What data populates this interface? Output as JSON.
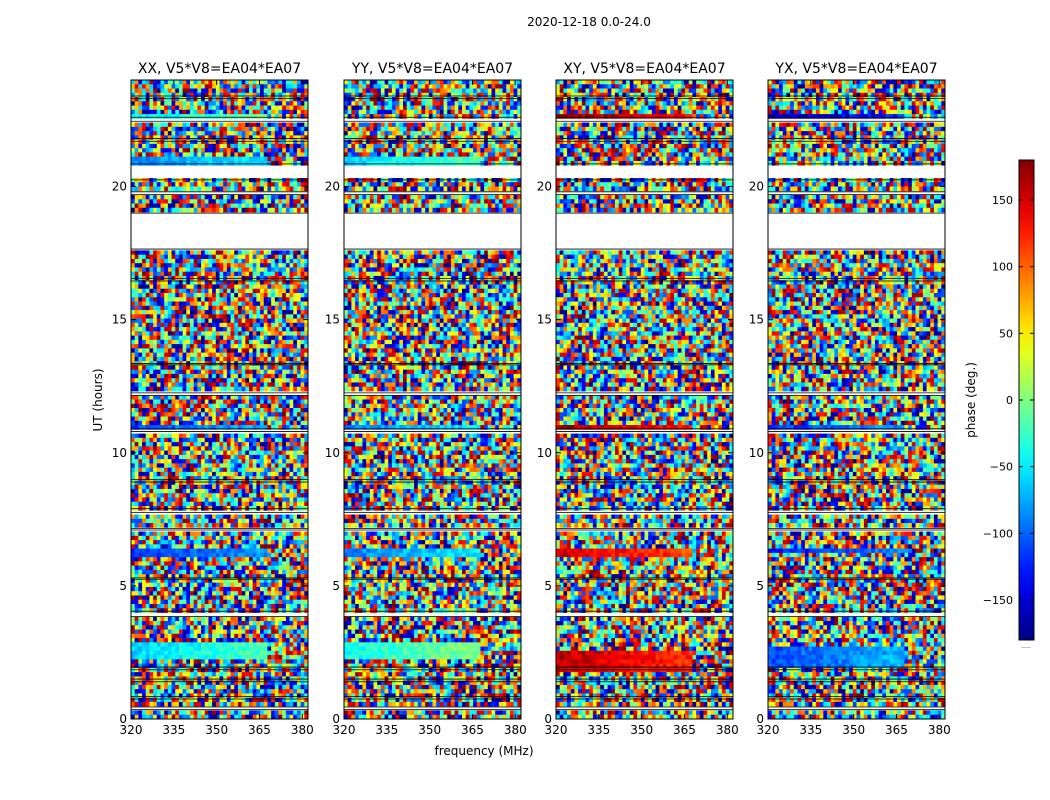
{
  "chart_data": {
    "type": "heatmap",
    "title": "2020-12-18 0.0-24.0",
    "xlabel": "frequency (MHz)",
    "ylabel": "UT (hours)",
    "xlim": [
      320,
      382
    ],
    "ylim": [
      0,
      24
    ],
    "x_ticks": [
      320,
      335,
      350,
      365,
      380
    ],
    "y_ticks": [
      0,
      5,
      10,
      15,
      20
    ],
    "panels": [
      {
        "title": "XX, V5*V8=EA04*EA07"
      },
      {
        "title": "YY, V5*V8=EA04*EA07"
      },
      {
        "title": "XY, V5*V8=EA04*EA07"
      },
      {
        "title": "YX, V5*V8=EA04*EA07"
      }
    ],
    "colorbar": {
      "label": "phase (deg.)",
      "range": [
        -180,
        180
      ],
      "ticks": [
        -150,
        -100,
        -50,
        0,
        50,
        100,
        150
      ],
      "colormap": "jet",
      "note": "....."
    },
    "gaps_hours": [
      [
        0.35,
        0.45
      ],
      [
        0.75,
        0.85
      ],
      [
        1.4,
        1.5
      ],
      [
        1.85,
        1.95
      ],
      [
        3.85,
        4.05
      ],
      [
        5.25,
        5.3
      ],
      [
        7.1,
        7.15
      ],
      [
        7.75,
        7.9
      ],
      [
        8.9,
        9.0
      ],
      [
        10.8,
        10.9
      ],
      [
        12.15,
        12.25
      ],
      [
        13.3,
        13.35
      ],
      [
        16.45,
        16.55
      ],
      [
        17.65,
        19.0
      ],
      [
        19.7,
        19.8
      ],
      [
        20.25,
        20.85
      ],
      [
        21.7,
        21.8
      ],
      [
        22.45,
        22.6
      ],
      [
        23.3,
        23.4
      ]
    ],
    "smooth_bands": [
      [
        [
          2.3,
          2.95,
          -60
        ],
        [
          6.1,
          6.45,
          -120
        ],
        [
          10.85,
          11.05,
          -110
        ],
        [
          20.65,
          21.05,
          -90
        ],
        [
          22.6,
          22.75,
          -50
        ]
      ],
      [
        [
          2.2,
          2.95,
          -40
        ],
        [
          6.1,
          6.45,
          -90
        ],
        [
          10.85,
          11.05,
          -90
        ],
        [
          20.65,
          21.05,
          -60
        ]
      ],
      [
        [
          1.8,
          2.5,
          160
        ],
        [
          6.15,
          6.4,
          150
        ],
        [
          10.85,
          11.0,
          170
        ],
        [
          22.55,
          22.7,
          175
        ]
      ],
      [
        [
          2.0,
          2.7,
          -110
        ],
        [
          6.2,
          6.45,
          -130
        ],
        [
          10.85,
          11.0,
          -120
        ],
        [
          22.55,
          22.7,
          -160
        ]
      ]
    ]
  }
}
